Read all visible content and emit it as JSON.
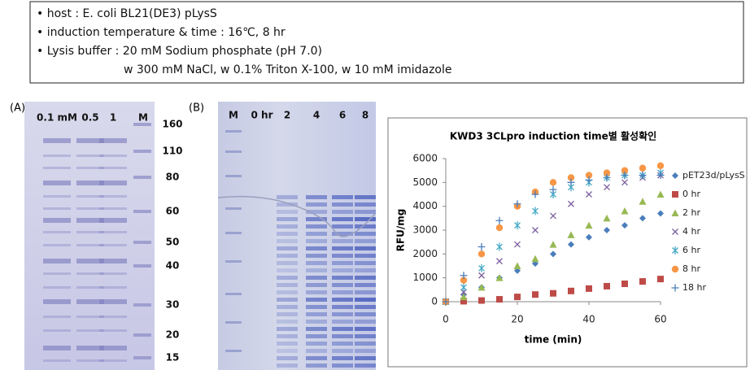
{
  "conditions": [
    "• host : E. coli BL21(DE3) pLysS",
    "• induction temperature & time : 16℃, 8 hr",
    "• Lysis buffer : 20 mM Sodium phosphate (pH 7.0)",
    "w 300 mM NaCl, w 0.1% Triton X-100, w 10 mM imidazole"
  ],
  "panel_a": {
    "label": "(A)",
    "lanes": [
      "0.1 mM",
      "0.5",
      "1",
      "M"
    ],
    "markers": [
      "160",
      "110",
      "80",
      "60",
      "50",
      "40",
      "30",
      "20",
      "15"
    ]
  },
  "panel_b": {
    "label": "(B)",
    "lanes": [
      "M",
      "0 hr",
      "2",
      "4",
      "6",
      "8"
    ]
  },
  "chart_data": {
    "type": "scatter",
    "title": "KWD3 3CLpro induction time별 활성확인",
    "x_label": "time (min)",
    "y_label": "RFU/mg",
    "x": [
      0,
      5,
      10,
      15,
      20,
      25,
      30,
      35,
      40,
      45,
      50,
      55,
      60
    ],
    "xlim": [
      0,
      60
    ],
    "xticks": [
      0,
      20,
      40,
      60
    ],
    "ylim": [
      0,
      6000
    ],
    "yticks": [
      0,
      1000,
      2000,
      3000,
      4000,
      5000,
      6000
    ],
    "legend": "right",
    "series": [
      {
        "name": "pET23d/pLysS",
        "color": "#4a7ebb",
        "marker": "diamond",
        "values": [
          0,
          300,
          600,
          1000,
          1300,
          1600,
          2000,
          2400,
          2700,
          3000,
          3200,
          3500,
          3700
        ]
      },
      {
        "name": "0 hr",
        "color": "#be4b48",
        "marker": "square",
        "values": [
          0,
          20,
          50,
          100,
          200,
          300,
          350,
          450,
          550,
          650,
          750,
          850,
          950
        ]
      },
      {
        "name": "2 hr",
        "color": "#98b954",
        "marker": "triangle",
        "values": [
          0,
          200,
          600,
          1000,
          1500,
          1800,
          2400,
          2800,
          3200,
          3500,
          3800,
          4200,
          4500
        ]
      },
      {
        "name": "4 hr",
        "color": "#7d60a0",
        "marker": "x",
        "values": [
          0,
          400,
          1100,
          1700,
          2400,
          3000,
          3600,
          4100,
          4500,
          4800,
          5000,
          5200,
          5300
        ]
      },
      {
        "name": "6 hr",
        "color": "#46aac5",
        "marker": "asterisk",
        "values": [
          0,
          600,
          1400,
          2300,
          3200,
          3800,
          4500,
          4800,
          5000,
          5200,
          5300,
          5300,
          5400
        ]
      },
      {
        "name": "8 hr",
        "color": "#f79646",
        "marker": "circle",
        "values": [
          0,
          900,
          2000,
          3100,
          4000,
          4600,
          5000,
          5200,
          5300,
          5400,
          5500,
          5600,
          5700
        ]
      },
      {
        "name": "18 hr",
        "color": "#4a7ebb",
        "marker": "plus",
        "values": [
          0,
          1100,
          2300,
          3400,
          4100,
          4500,
          4700,
          5000,
          5100,
          5200,
          5300,
          5300,
          5300
        ]
      }
    ]
  }
}
